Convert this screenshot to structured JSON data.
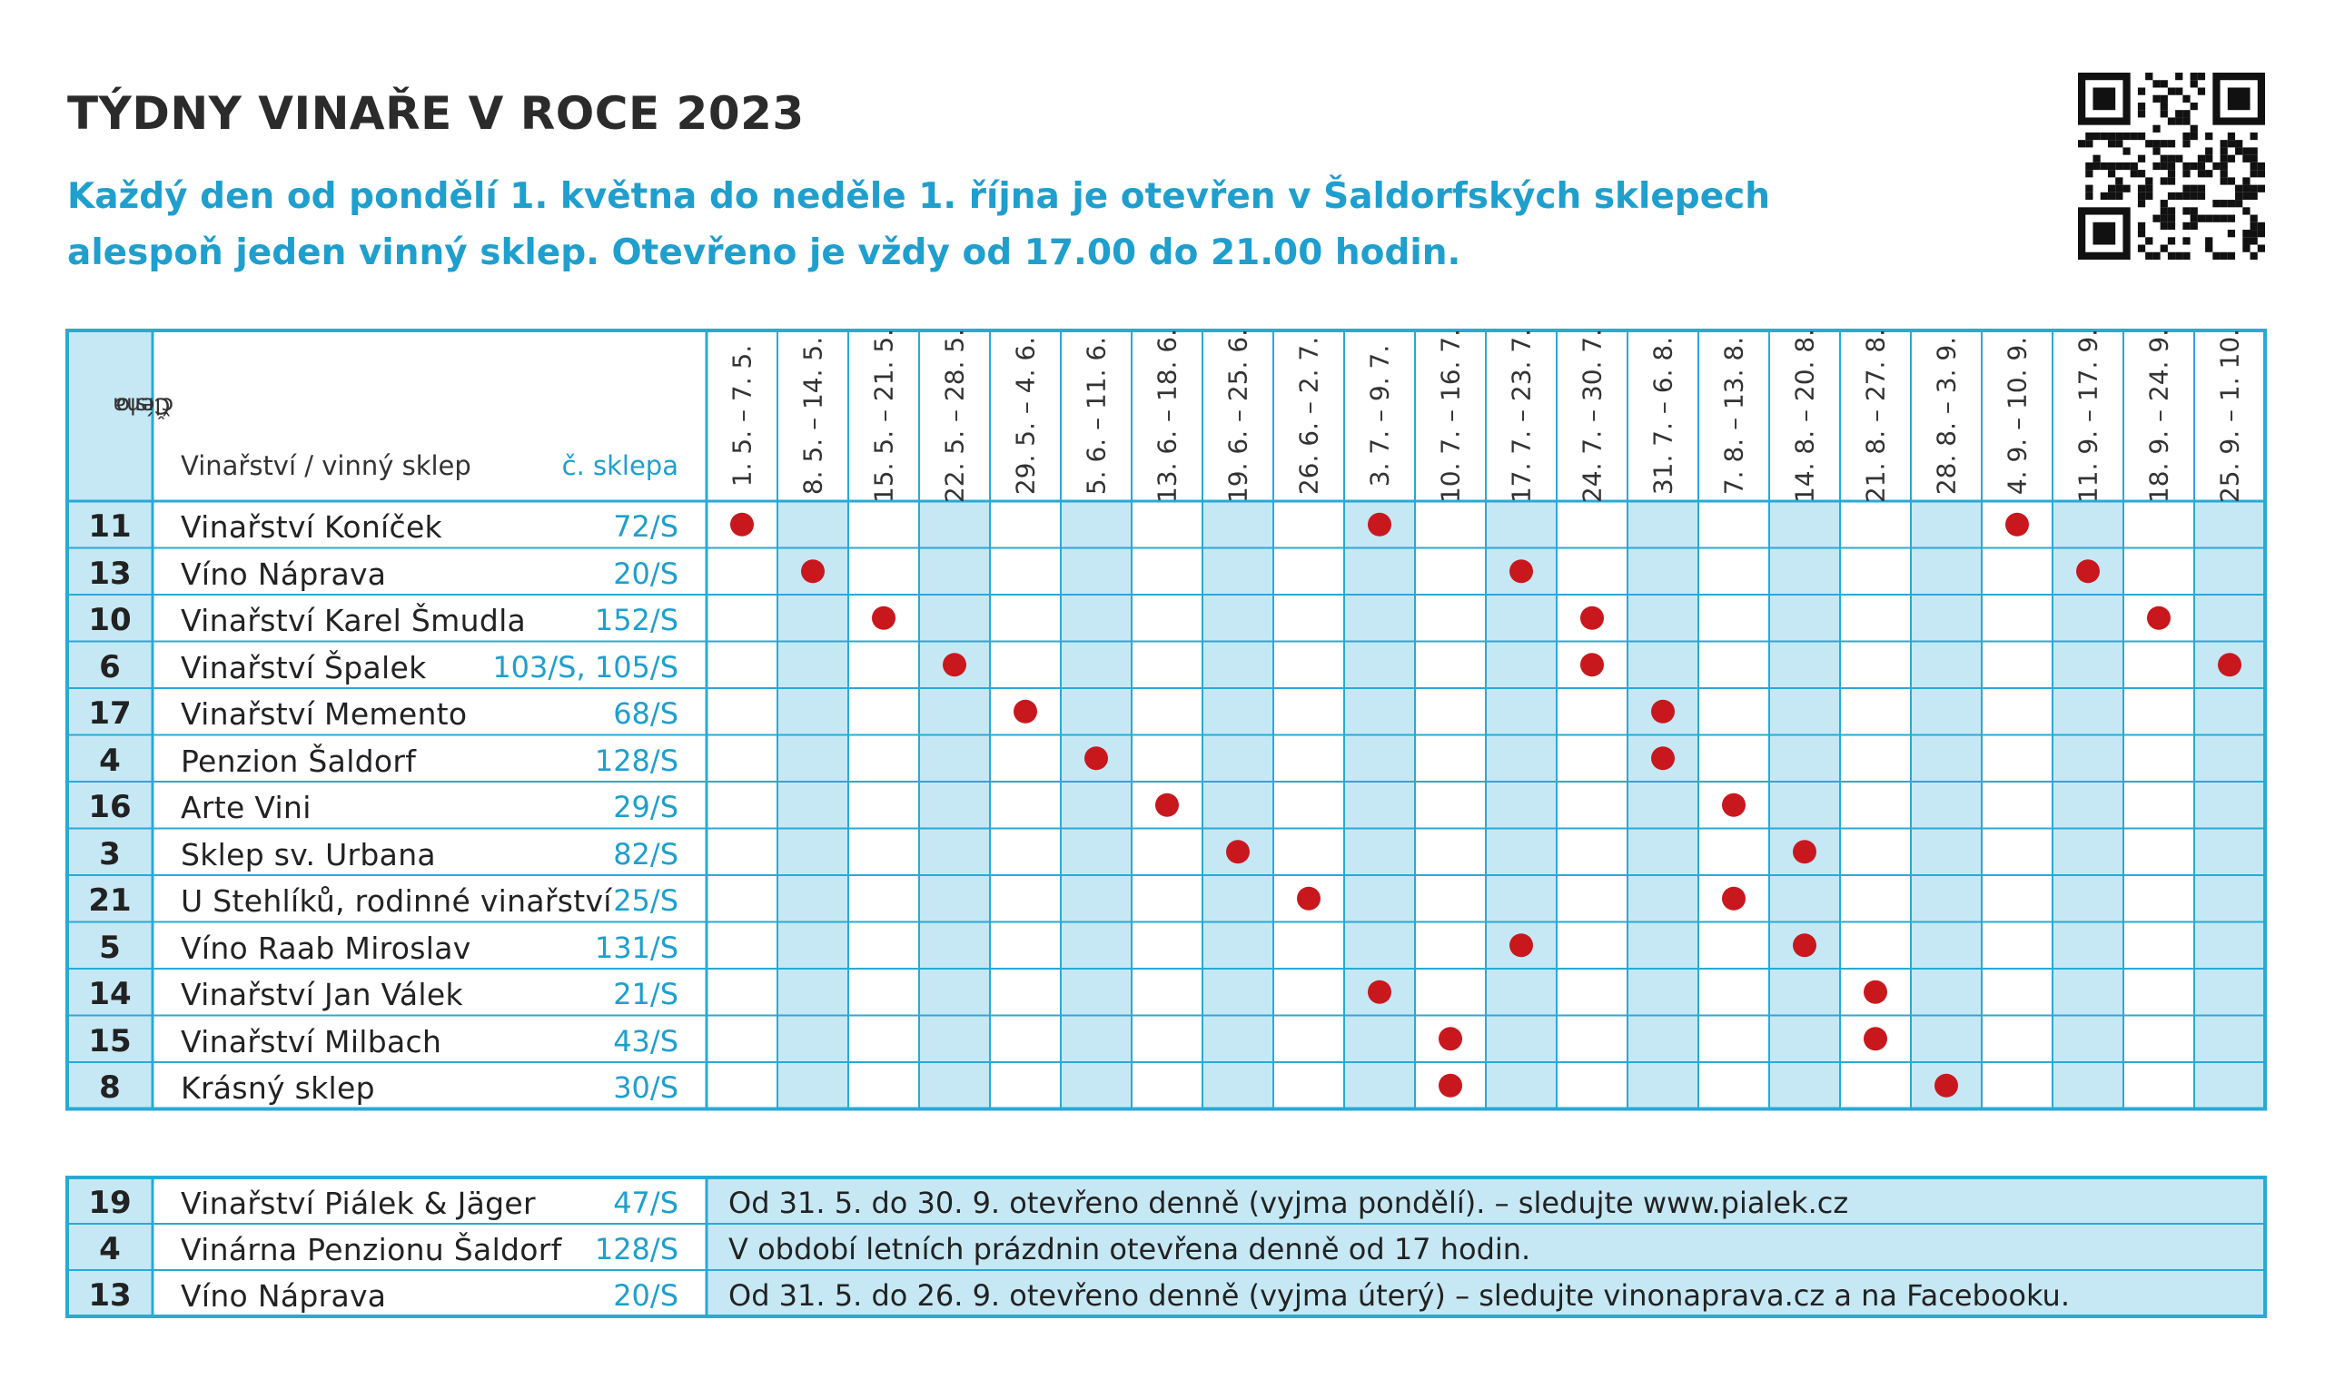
{
  "title": "TÝDNY VINAŘE V ROCE 2023",
  "subtitle_line1": "Každý den od pondělí 1. května do neděle 1. října je otevřen v Šaldorfských sklepech",
  "subtitle_line2": "alespoň jeden vinný sklep. Otevřeno je vždy od 17.00 do 21.00 hodin.",
  "header": {
    "member_line1": "Číslo",
    "member_line2": "člena",
    "winery": "Vinařství / vinný sklep",
    "cellar": "č. sklepa"
  },
  "weeks": [
    "1. 5. – 7. 5.",
    "8. 5. – 14. 5.",
    "15. 5. – 21. 5.",
    "22. 5. – 28. 5.",
    "29. 5. – 4. 6.",
    "5. 6. – 11. 6.",
    "13. 6. – 18. 6.",
    "19. 6. – 25. 6.",
    "26. 6. – 2. 7.",
    "3. 7. – 9. 7.",
    "10. 7. – 16. 7.",
    "17. 7. – 23. 7.",
    "24. 7. – 30. 7.",
    "31. 7. – 6. 8.",
    "7. 8. – 13. 8.",
    "14. 8. – 20. 8.",
    "21. 8. – 27. 8.",
    "28. 8. – 3. 9.",
    "4. 9. – 10. 9.",
    "11. 9. – 17. 9.",
    "18. 9. – 24. 9.",
    "25. 9. – 1. 10."
  ],
  "rows": [
    {
      "num": "11",
      "name": "Vinařství Koníček",
      "cellar": "72/S",
      "weeks_open": [
        0,
        9,
        18
      ]
    },
    {
      "num": "13",
      "name": "Víno Náprava",
      "cellar": "20/S",
      "weeks_open": [
        1,
        11,
        19
      ]
    },
    {
      "num": "10",
      "name": "Vinařství Karel Šmudla",
      "cellar": "152/S",
      "weeks_open": [
        2,
        12,
        20
      ]
    },
    {
      "num": "6",
      "name": "Vinařství Špalek",
      "cellar": "103/S, 105/S",
      "weeks_open": [
        3,
        12,
        21
      ]
    },
    {
      "num": "17",
      "name": "Vinařství Memento",
      "cellar": "68/S",
      "weeks_open": [
        4,
        13
      ]
    },
    {
      "num": "4",
      "name": "Penzion Šaldorf",
      "cellar": "128/S",
      "weeks_open": [
        5,
        13
      ]
    },
    {
      "num": "16",
      "name": "Arte Vini",
      "cellar": "29/S",
      "weeks_open": [
        6,
        14
      ]
    },
    {
      "num": "3",
      "name": "Sklep sv. Urbana",
      "cellar": "82/S",
      "weeks_open": [
        7,
        15
      ]
    },
    {
      "num": "21",
      "name": "U Stehlíků, rodinné vinařství",
      "cellar": "25/S",
      "weeks_open": [
        8,
        14
      ]
    },
    {
      "num": "5",
      "name": "Víno Raab Miroslav",
      "cellar": "131/S",
      "weeks_open": [
        11,
        15
      ]
    },
    {
      "num": "14",
      "name": "Vinařství Jan Válek",
      "cellar": "21/S",
      "weeks_open": [
        9,
        16
      ]
    },
    {
      "num": "15",
      "name": "Vinařství Milbach",
      "cellar": "43/S",
      "weeks_open": [
        10,
        16
      ]
    },
    {
      "num": "8",
      "name": "Krásný sklep",
      "cellar": "30/S",
      "weeks_open": [
        10,
        17
      ]
    }
  ],
  "extra_rows": [
    {
      "num": "19",
      "name": "Vinařství Piálek & Jäger",
      "cellar": "47/S",
      "note": "Od 31. 5. do 30. 9. otevřeno denně (vyjma pondělí). – sledujte www.pialek.cz"
    },
    {
      "num": "4",
      "name": "Vinárna Penzionu Šaldorf",
      "cellar": "128/S",
      "note": "V období letních prázdnin otevřena denně od 17 hodin."
    },
    {
      "num": "13",
      "name": "Víno Náprava",
      "cellar": "20/S",
      "note": "Od 31. 5. do 26. 9. otevřeno denně (vyjma úterý) – sledujte vinonaprava.cz a na Facebooku."
    }
  ],
  "colors": {
    "accent_blue": "#1f9fcd",
    "border_blue": "#29a9d6",
    "stripe": "#c6e8f5",
    "dot": "#c8181d"
  },
  "icons": {
    "qr": "qr-code-icon"
  }
}
